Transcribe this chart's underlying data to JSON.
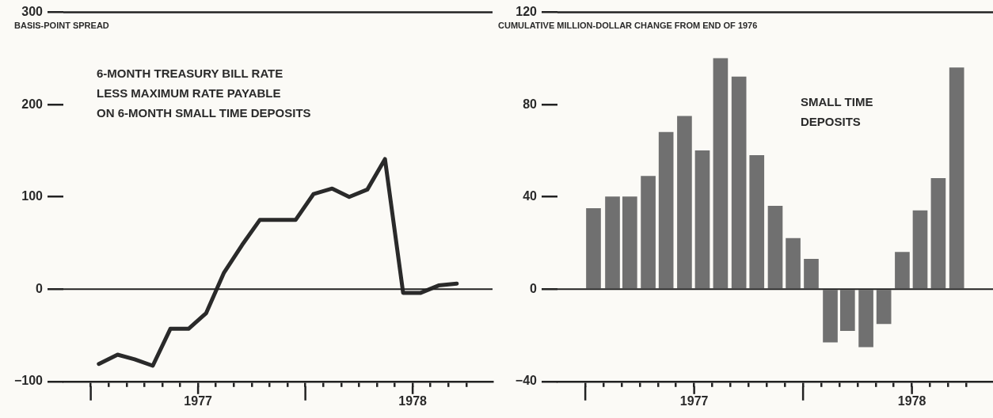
{
  "chart_data": [
    {
      "type": "line",
      "ylabel": "BASIS-POINT SPREAD",
      "annotations": [
        "6-MONTH TREASURY BILL RATE\nLESS MAXIMUM RATE PAYABLE\nON 6-MONTH SMALL TIME DEPOSITS"
      ],
      "x": [
        "1977-01-15",
        "1977-02-15",
        "1977-03-15",
        "1977-04-15",
        "1977-05-15",
        "1977-06-15",
        "1977-07-15",
        "1977-08-15",
        "1977-09-15",
        "1977-10-15",
        "1977-11-15",
        "1977-12-15",
        "1978-01-15",
        "1978-02-15",
        "1978-03-15",
        "1978-04-15",
        "1978-05-15",
        "1978-06-15",
        "1978-07-15",
        "1978-08-15",
        "1978-09-15"
      ],
      "series": [
        {
          "color": "#2a2a2a",
          "values": [
            -81,
            -71,
            -76,
            -83,
            -43,
            -43,
            -26,
            18,
            48,
            75,
            75,
            75,
            103,
            109,
            100,
            108,
            141,
            -4,
            -4,
            4,
            6
          ]
        }
      ],
      "xlim": [
        "1976-11-15",
        "1978-11-15"
      ],
      "xticks": [
        {
          "value": "1977-01-01",
          "label": null
        },
        {
          "value": "1977-02-01",
          "label": null
        },
        {
          "value": "1977-03-01",
          "label": null
        },
        {
          "value": "1977-04-01",
          "label": null
        },
        {
          "value": "1977-05-01",
          "label": null
        },
        {
          "value": "1977-06-01",
          "label": null
        },
        {
          "value": "1977-07-01",
          "label": "1977"
        },
        {
          "value": "1977-08-01",
          "label": null
        },
        {
          "value": "1977-09-01",
          "label": null
        },
        {
          "value": "1977-10-01",
          "label": null
        },
        {
          "value": "1977-11-01",
          "label": null
        },
        {
          "value": "1977-12-01",
          "label": null
        },
        {
          "value": "1978-01-01",
          "label": null
        },
        {
          "value": "1978-02-01",
          "label": null
        },
        {
          "value": "1978-03-01",
          "label": null
        },
        {
          "value": "1978-04-01",
          "label": null
        },
        {
          "value": "1978-05-01",
          "label": null
        },
        {
          "value": "1978-06-01",
          "label": null
        },
        {
          "value": "1978-07-01",
          "label": "1978"
        },
        {
          "value": "1978-08-01",
          "label": null
        },
        {
          "value": "1978-09-01",
          "label": null
        },
        {
          "value": "1978-10-01",
          "label": null
        }
      ],
      "ylim": [
        -100,
        300
      ],
      "yticks": [
        -100,
        0,
        100,
        200,
        300
      ],
      "ref_lines": [
        {
          "axis": "y",
          "value": 0
        }
      ],
      "grid": false,
      "legend": false
    },
    {
      "type": "bar",
      "ylabel": "CUMULATIVE MILLION-DOLLAR CHANGE FROM END OF 1976",
      "annotations": [
        "SMALL TIME\nDEPOSITS"
      ],
      "x": [
        "1977-01-15",
        "1977-02-15",
        "1977-03-15",
        "1977-04-15",
        "1977-05-15",
        "1977-06-15",
        "1977-07-15",
        "1977-08-15",
        "1977-09-15",
        "1977-10-15",
        "1977-11-15",
        "1977-12-15",
        "1978-01-15",
        "1978-02-15",
        "1978-03-15",
        "1978-04-15",
        "1978-05-15",
        "1978-06-15",
        "1978-07-15",
        "1978-08-15",
        "1978-09-15"
      ],
      "series": [
        {
          "color": "#707070",
          "values": [
            35,
            40,
            40,
            49,
            68,
            75,
            60,
            100,
            92,
            58,
            36,
            22,
            13,
            -23,
            -18,
            -25,
            -15,
            16,
            34,
            48,
            96
          ]
        }
      ],
      "xlim": [
        "1976-11-15",
        "1978-11-15"
      ],
      "xticks": [
        {
          "value": "1977-01-01",
          "label": null
        },
        {
          "value": "1977-02-01",
          "label": null
        },
        {
          "value": "1977-03-01",
          "label": null
        },
        {
          "value": "1977-04-01",
          "label": null
        },
        {
          "value": "1977-05-01",
          "label": null
        },
        {
          "value": "1977-06-01",
          "label": null
        },
        {
          "value": "1977-07-01",
          "label": "1977"
        },
        {
          "value": "1977-08-01",
          "label": null
        },
        {
          "value": "1977-09-01",
          "label": null
        },
        {
          "value": "1977-10-01",
          "label": null
        },
        {
          "value": "1977-11-01",
          "label": null
        },
        {
          "value": "1977-12-01",
          "label": null
        },
        {
          "value": "1978-01-01",
          "label": null
        },
        {
          "value": "1978-02-01",
          "label": null
        },
        {
          "value": "1978-03-01",
          "label": null
        },
        {
          "value": "1978-04-01",
          "label": null
        },
        {
          "value": "1978-05-01",
          "label": null
        },
        {
          "value": "1978-06-01",
          "label": null
        },
        {
          "value": "1978-07-01",
          "label": "1978"
        },
        {
          "value": "1978-08-01",
          "label": null
        },
        {
          "value": "1978-09-01",
          "label": null
        },
        {
          "value": "1978-10-01",
          "label": null
        }
      ],
      "ylim": [
        -40,
        120
      ],
      "yticks": [
        -40,
        0,
        40,
        80,
        120
      ],
      "ref_lines": [
        {
          "axis": "y",
          "value": 0
        }
      ],
      "grid": false,
      "legend": false
    }
  ]
}
